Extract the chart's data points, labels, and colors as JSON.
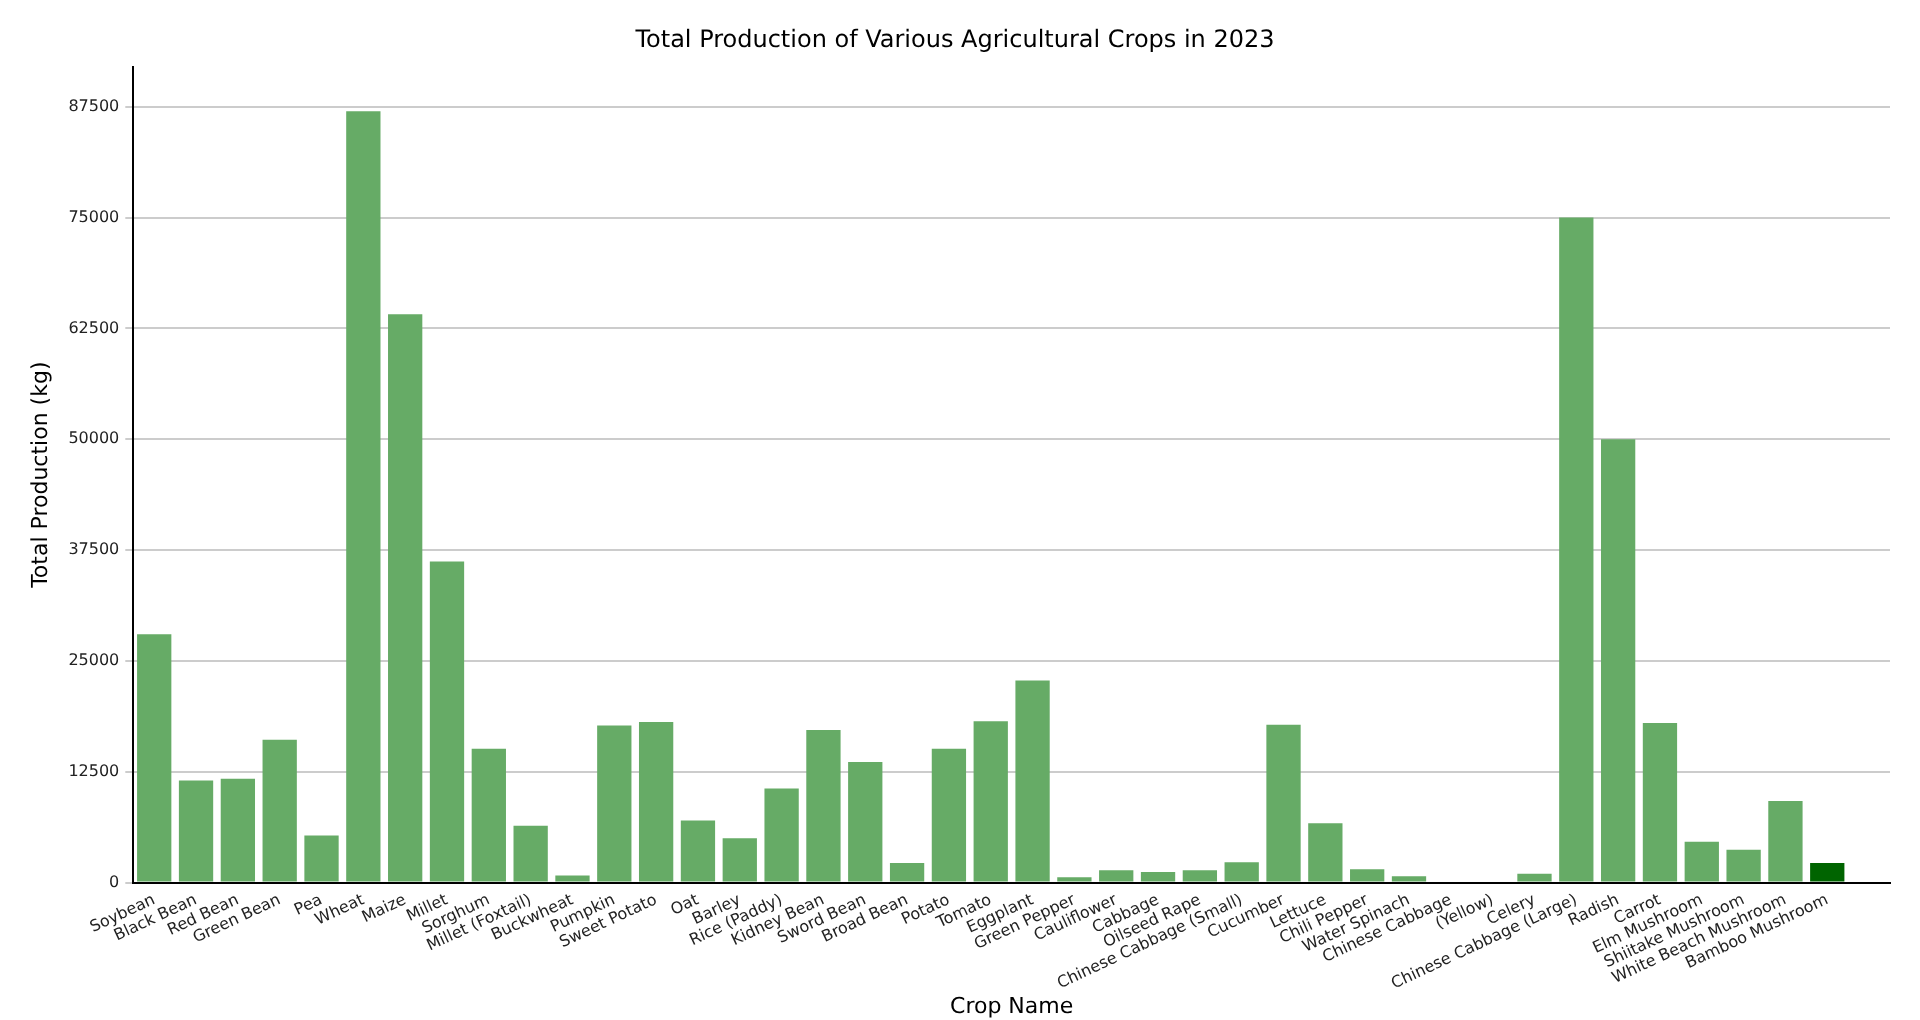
{
  "chart_data": {
    "type": "bar",
    "title": "Total Production of Various Agricultural Crops in 2023",
    "xlabel": "Crop Name",
    "ylabel": "Total Production (kg)",
    "categories": [
      "Soybean",
      "Black Bean",
      "Red Bean",
      "Green Bean",
      "Pea",
      "Wheat",
      "Maize",
      "Millet",
      "Sorghum",
      "Millet (Foxtail)",
      "Buckwheat",
      "Pumpkin",
      "Sweet Potato",
      "Oat",
      "Barley",
      "Rice (Paddy)",
      "Kidney Bean",
      "Sword Bean",
      "Broad Bean",
      "Potato",
      "Tomato",
      "Eggplant",
      "Green Pepper",
      "Cauliflower",
      "Cabbage",
      "Oilseed Rape",
      "Chinese Cabbage (Small)",
      "Cucumber",
      "Lettuce",
      "Chili Pepper",
      "Water Spinach",
      "Chinese Cabbage",
      "(Yellow)",
      "Celery",
      "Chinese Cabbage (Large)",
      "Radish",
      "Carrot",
      "Elm Mushroom",
      "Shiitake Mushroom",
      "White Beach Mushroom",
      "Bamboo Mushroom",
      null
    ],
    "values": [
      28000,
      11500,
      11700,
      16100,
      5300,
      87000,
      64100,
      36200,
      15100,
      6400,
      800,
      17700,
      18100,
      7000,
      5000,
      10600,
      17200,
      13600,
      2200,
      15100,
      18200,
      22800,
      600,
      1400,
      1200,
      1400,
      2300,
      17800,
      6700,
      1500,
      700,
      0,
      0,
      1000,
      75000,
      50000,
      18000,
      4600,
      3700,
      9200,
      2200,
      0
    ],
    "colors": [
      "#66ab66",
      "#66ab66",
      "#66ab66",
      "#66ab66",
      "#66ab66",
      "#66ab66",
      "#66ab66",
      "#66ab66",
      "#66ab66",
      "#66ab66",
      "#66ab66",
      "#66ab66",
      "#66ab66",
      "#66ab66",
      "#66ab66",
      "#66ab66",
      "#66ab66",
      "#66ab66",
      "#66ab66",
      "#66ab66",
      "#66ab66",
      "#66ab66",
      "#66ab66",
      "#66ab66",
      "#66ab66",
      "#66ab66",
      "#66ab66",
      "#66ab66",
      "#66ab66",
      "#66ab66",
      "#66ab66",
      "#66ab66",
      "#66ab66",
      "#66ab66",
      "#66ab66",
      "#66ab66",
      "#66ab66",
      "#66ab66",
      "#66ab66",
      "#66ab66",
      "#006400",
      "#006400"
    ],
    "ylim": [
      0,
      92000
    ],
    "yticks": [
      0,
      12500,
      25000,
      37500,
      50000,
      62500,
      75000,
      87500
    ],
    "grid": "y"
  }
}
